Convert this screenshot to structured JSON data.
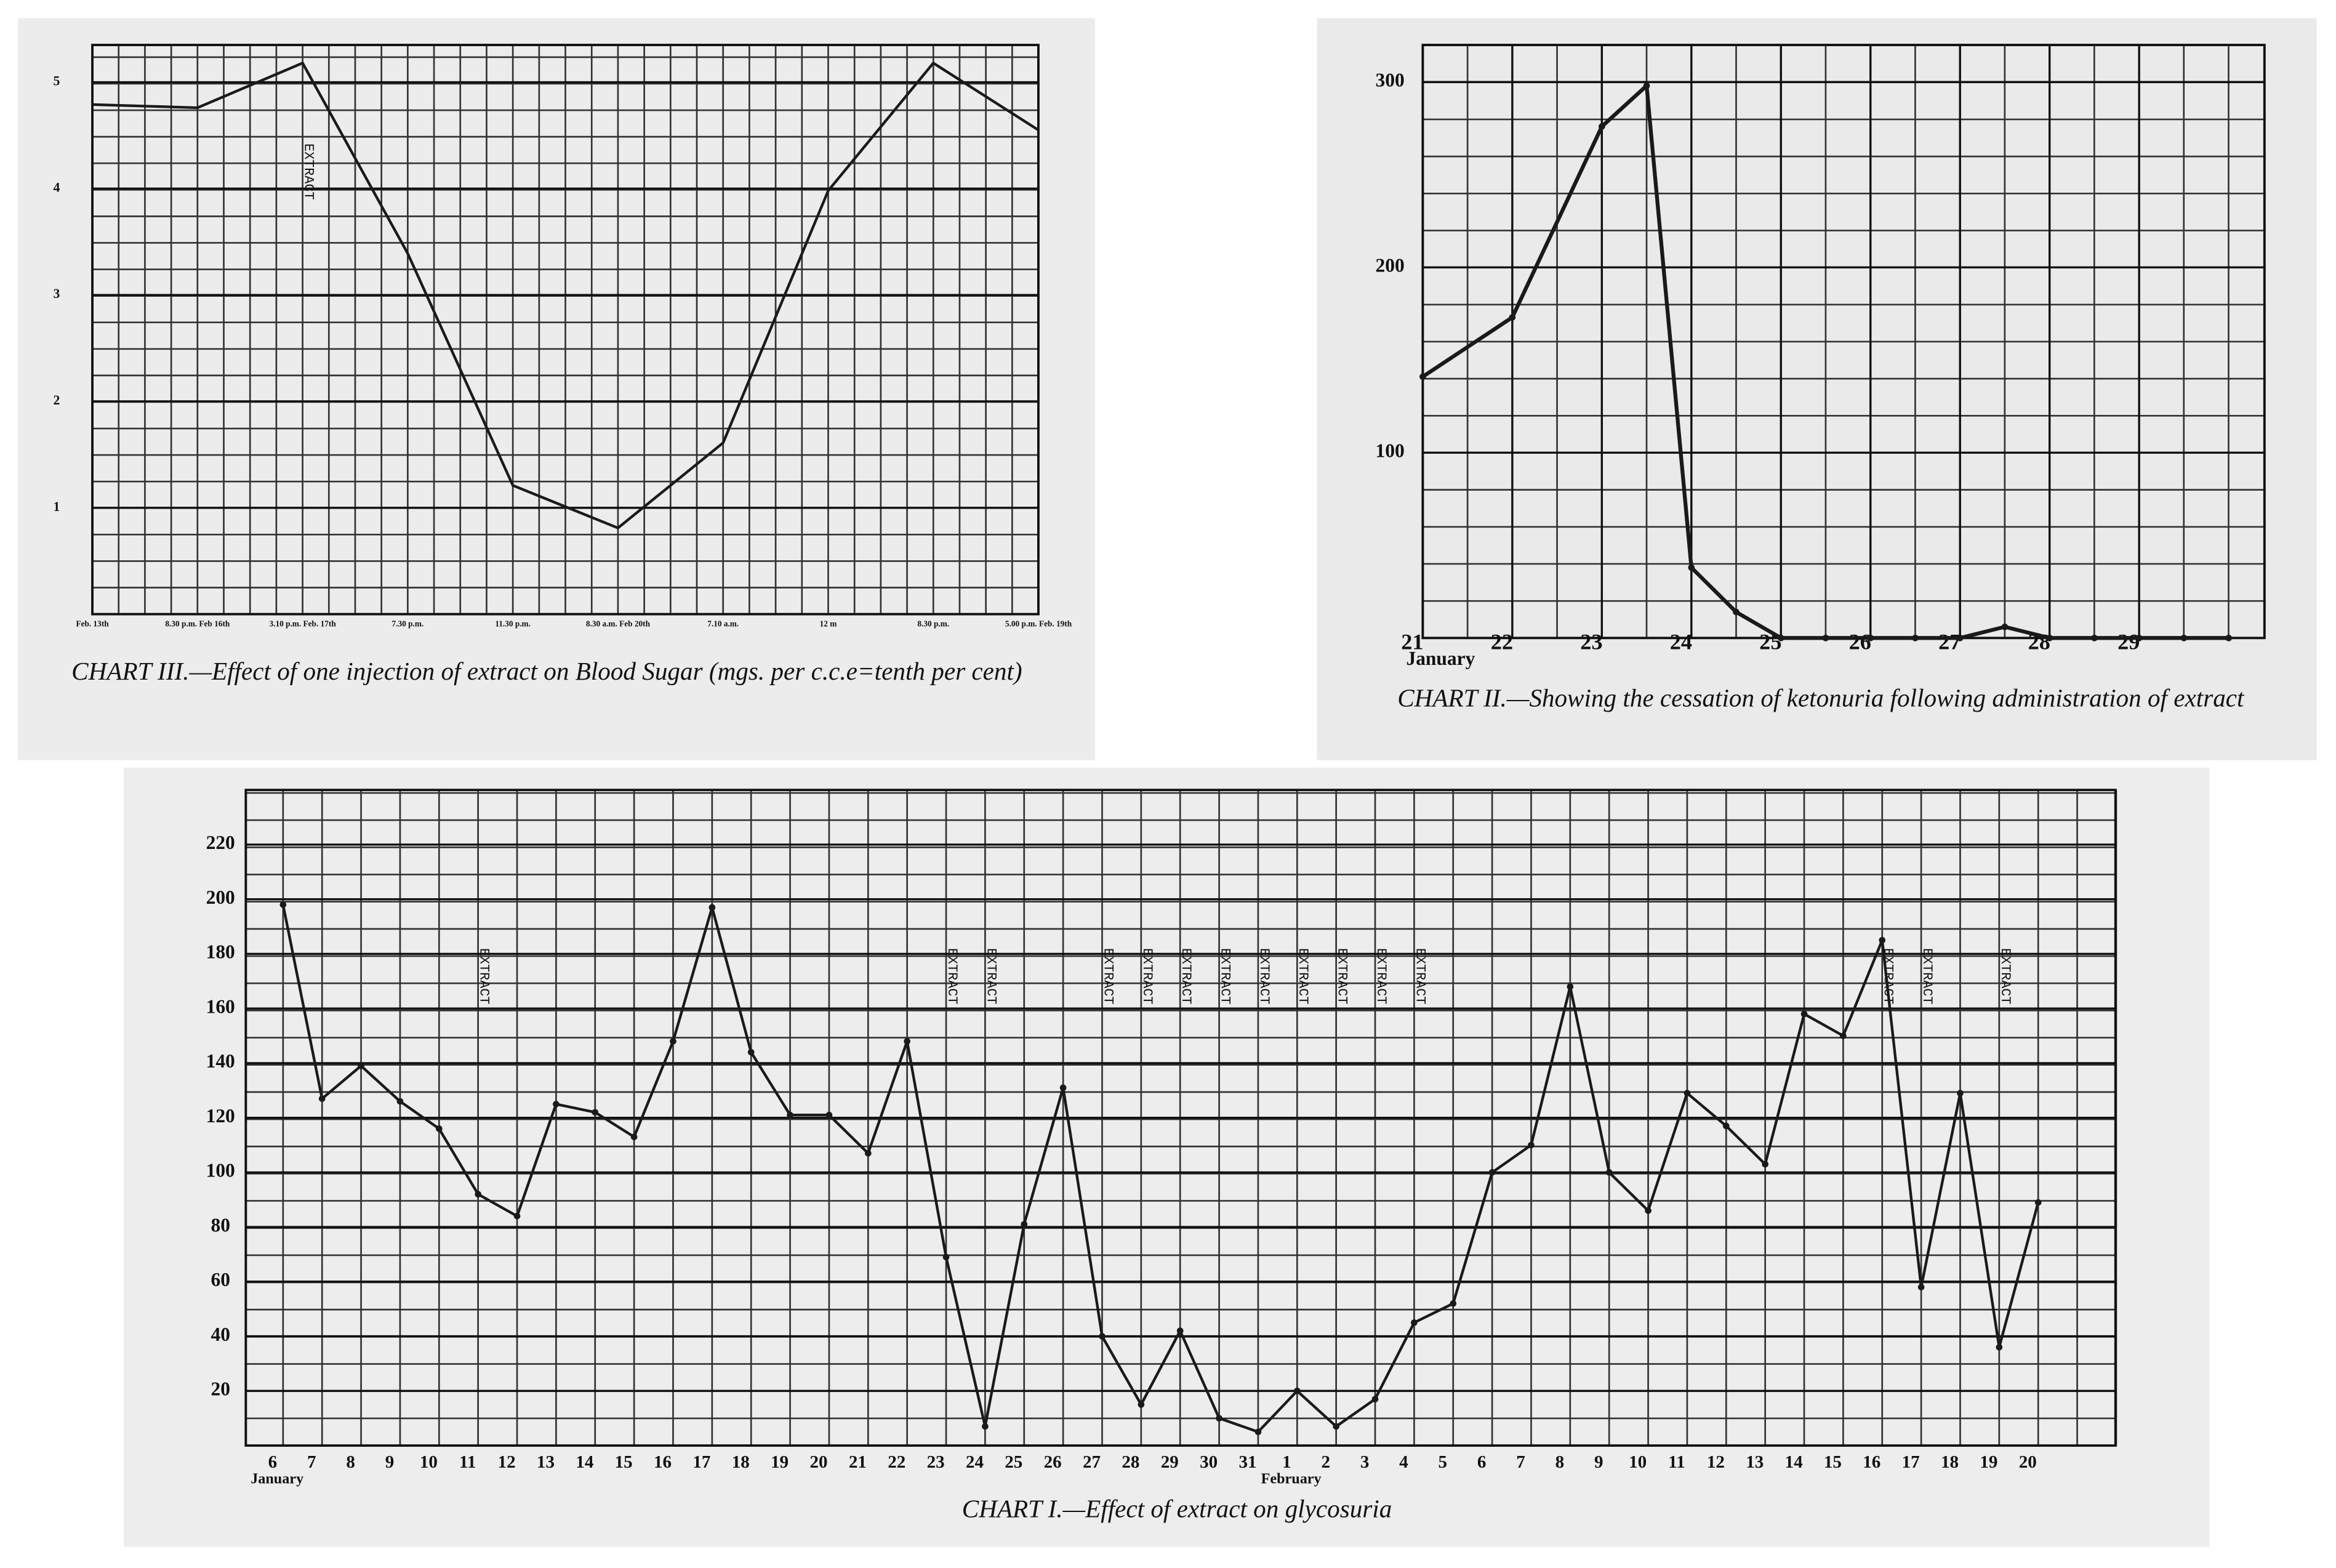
{
  "chart_data": [
    {
      "type": "line",
      "title": "CHART III.—Effect of one injection of extract on Blood Sugar (mgs. per c.c.e=tenth per cent)",
      "categories": [
        "Feb. 13th",
        "8.30 p.m. Feb 16th",
        "3.10 p.m. Feb. 17th",
        "7.30 p.m.",
        "11.30 p.m.",
        "8.30 a.m. Feb 20th",
        "7.10 a.m.",
        "12 m",
        "8.30 p.m.",
        "5.00 p.m. Feb. 19th"
      ],
      "values": [
        4.79,
        4.76,
        5.18,
        3.39,
        1.21,
        0.81,
        1.61,
        3.98,
        5.18,
        4.55
      ],
      "color": "#1a1a1a",
      "ylim": [
        0,
        5.35
      ],
      "yticks": [
        1,
        2,
        3,
        4,
        5
      ],
      "grid": true,
      "extract_labels": [
        null,
        null,
        "EXTRACT",
        null,
        null,
        null,
        null,
        null,
        null,
        null
      ]
    },
    {
      "type": "line",
      "title": "CHART II.—Showing the cessation of ketonuria following administration of extract",
      "x": [
        21,
        22,
        23,
        23.5,
        24,
        24.5,
        25,
        25.5,
        26,
        26.5,
        27,
        27.5,
        28,
        28.5,
        29,
        29.5,
        30
      ],
      "values": [
        141,
        173,
        276,
        298,
        38,
        14,
        0,
        0,
        0,
        0,
        0,
        6,
        0,
        0,
        0,
        0,
        0
      ],
      "color": "#1a1a1a",
      "xlim": [
        21,
        30.4
      ],
      "xticks": [
        21,
        22,
        23,
        24,
        25,
        26,
        27,
        28,
        29
      ],
      "xlabel": "January",
      "ylim": [
        0,
        320
      ],
      "yticks": [
        100,
        200,
        300
      ],
      "grid": true,
      "markers": true
    },
    {
      "type": "line",
      "title": "CHART I.—Effect of extract on glycosuria",
      "categories": [
        "6",
        "7",
        "8",
        "9",
        "10",
        "11",
        "12",
        "13",
        "14",
        "15",
        "16",
        "17",
        "18",
        "19",
        "20",
        "21",
        "22",
        "23",
        "24",
        "25",
        "26",
        "27",
        "28",
        "29",
        "30",
        "31",
        "1",
        "2",
        "3",
        "4",
        "5",
        "6",
        "7",
        "8",
        "9",
        "10",
        "11",
        "12",
        "13",
        "14",
        "15",
        "16",
        "17",
        "18",
        "19",
        "20"
      ],
      "values": [
        198,
        127,
        139,
        126,
        116,
        92,
        84,
        125,
        122,
        113,
        148,
        197,
        144,
        121,
        121,
        107,
        148,
        69,
        7,
        81,
        131,
        40,
        15,
        42,
        10,
        5,
        20,
        7,
        17,
        45,
        52,
        100,
        110,
        168,
        100,
        86,
        129,
        117,
        103,
        158,
        150,
        185,
        58,
        129,
        36,
        89
      ],
      "color": "#1a1a1a",
      "month_labels": [
        "January",
        null,
        null,
        null,
        null,
        null,
        null,
        null,
        null,
        null,
        null,
        null,
        null,
        null,
        null,
        null,
        null,
        null,
        null,
        null,
        null,
        null,
        null,
        null,
        null,
        null,
        "February",
        null,
        null,
        null,
        null,
        null,
        null,
        null,
        null,
        null,
        null,
        null,
        null,
        null,
        null,
        null,
        null,
        null,
        null,
        null
      ],
      "extract_labels": [
        null,
        null,
        null,
        null,
        null,
        "EXTRACT",
        null,
        null,
        null,
        null,
        null,
        null,
        null,
        null,
        null,
        null,
        null,
        "EXTRACT",
        "EXTRACT",
        null,
        null,
        "EXTRACT",
        "EXTRACT",
        "EXTRACT",
        "EXTRACT",
        "EXTRACT",
        "EXTRACT",
        "EXTRACT",
        "EXTRACT",
        "EXTRACT",
        null,
        null,
        null,
        null,
        null,
        null,
        null,
        null,
        null,
        null,
        null,
        "EXTRACT",
        "EXTRACT",
        null,
        "EXTRACT",
        null
      ],
      "ylim": [
        0,
        240
      ],
      "yticks": [
        20,
        40,
        60,
        80,
        100,
        120,
        140,
        160,
        180,
        200,
        220
      ],
      "grid": true,
      "markers": true
    }
  ]
}
